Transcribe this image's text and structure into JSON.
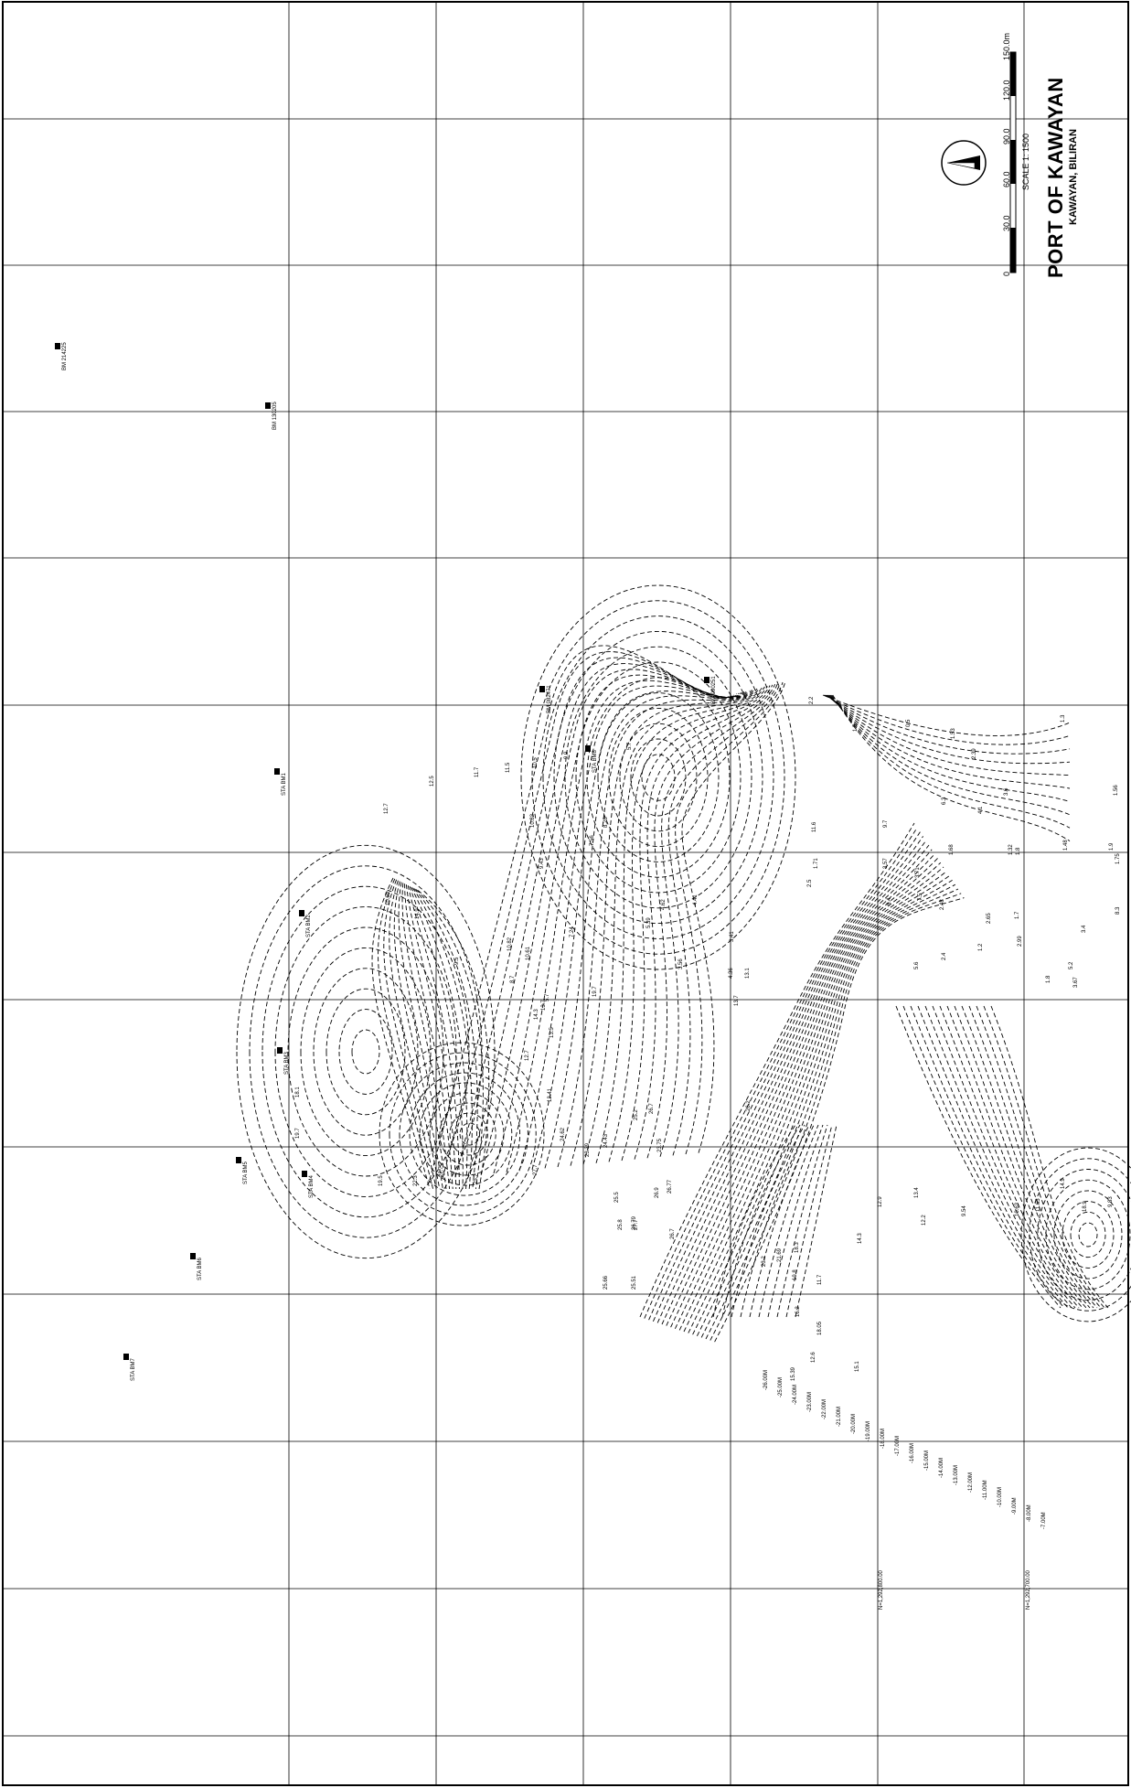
{
  "title_block": {
    "title": "PORT OF KAWAYAN",
    "subtitle": "KAWAYAN, BILIRAN",
    "scale_caption": "SCALE 1: 1500",
    "scale_ticks": [
      "0",
      "30.0",
      "60.0",
      "90.0",
      "120.0",
      "150.0m"
    ]
  },
  "north_arrow": {
    "icon": "north-arrow-icon"
  },
  "northings": [
    "N=1,292,800.00",
    "N=1,292,700.00"
  ],
  "depth_legend": [
    "-26.00M",
    "-25.00M",
    "-24.00M",
    "-23.00M",
    "-22.00M",
    "-21.00M",
    "-20.00M",
    "-19.00M",
    "-18.00M",
    "-17.00M",
    "-16.00M",
    "-15.00M",
    "-14.00M",
    "-13.00M",
    "-12.00M",
    "-11.00M",
    "-10.00M",
    "-9.00M",
    "-8.00M",
    "-7.00M"
  ],
  "soundings": [
    "2.2",
    "1.5",
    "0.5",
    "1.53",
    "1.3",
    "1.56",
    "2.39",
    "3.6",
    "1.8",
    "1.48",
    "1.7",
    "2.65",
    "2.99",
    "3.67",
    "1.8",
    "5.2",
    "3.4",
    "8.3",
    "1.9",
    "1.75",
    "2.4",
    "1.2",
    "6.3",
    "4.1",
    "1.32",
    "1.68",
    "3.71",
    "2.48",
    "5.6",
    "7.5",
    "11.6",
    "9.7",
    "3.57",
    "1.71",
    "2.5",
    "8.4",
    "12.7",
    "12.5",
    "11.7",
    "11.5",
    "10.5",
    "9.9",
    "5.7",
    "9.43",
    "10.82",
    "8.28",
    "7.56",
    "7.24",
    "5.39",
    "4.62",
    "4.41",
    "3.56",
    "3.41",
    "4.36",
    "13.1",
    "13.7",
    "10.69",
    "14.9",
    "9.5",
    "10.82",
    "10.61",
    "8.7",
    "5.7",
    "14.3",
    "13.5",
    "12.7",
    "12.41",
    "13.7",
    "19.7",
    "19.7",
    "18.1",
    "19.5",
    "22.3",
    "22.7",
    "25.7",
    "27.7",
    "26.2",
    "26.7",
    "25.2",
    "24.43",
    "24.62",
    "23.39",
    "23.75",
    "25.5",
    "25.8",
    "26.79",
    "26.77",
    "27.7",
    "26.9",
    "26.7",
    "25.51",
    "25.66",
    "23.2",
    "21.69",
    "18.3",
    "19.8",
    "16.2",
    "12.6",
    "15.39",
    "18.05",
    "15.1",
    "11.7",
    "14.3",
    "12.9",
    "13.4",
    "12.2",
    "9.54",
    "10.63",
    "11.65",
    "14.9",
    "18.9",
    "9.83"
  ],
  "benchmarks": [
    {
      "label": "BM 214225"
    },
    {
      "label": "BM 130205"
    },
    {
      "label": "STA BM1"
    },
    {
      "label": "STA BM2"
    },
    {
      "label": "BM 082471"
    },
    {
      "label": "BM 090251"
    },
    {
      "label": "STA BM3"
    },
    {
      "label": "STA BM4"
    },
    {
      "label": "STA BM5"
    },
    {
      "label": "STA BM6"
    },
    {
      "label": "STA BM7"
    },
    {
      "label": "STA BM8"
    }
  ]
}
